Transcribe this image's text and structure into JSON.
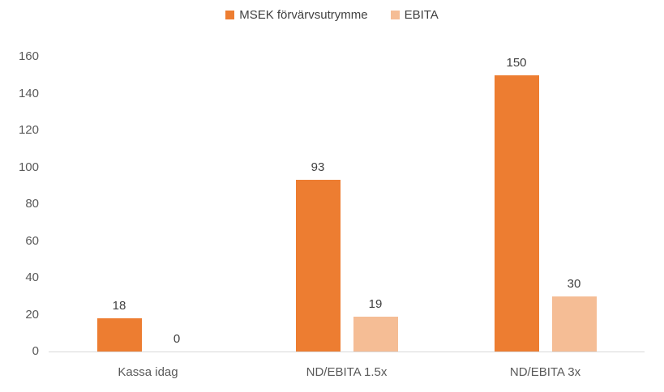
{
  "chart_data": {
    "type": "bar",
    "title": "",
    "categories": [
      "Kassa idag",
      "ND/EBITA 1.5x",
      "ND/EBITA 3x"
    ],
    "series": [
      {
        "name": "MSEK förvärvsutrymme",
        "values": [
          18,
          93,
          150
        ],
        "color": "#ED7D31"
      },
      {
        "name": "EBITA",
        "values": [
          0,
          19,
          30
        ],
        "color": "#F5BD95"
      }
    ],
    "yticks": [
      0,
      20,
      40,
      60,
      80,
      100,
      120,
      140,
      160
    ],
    "ylim": [
      0,
      160
    ],
    "xlabel": "",
    "ylabel": "",
    "grid": false,
    "legend_position": "top",
    "value_labels": true,
    "colors": {
      "axis_line": "#D9D9D9",
      "tick_text": "#595959",
      "value_text": "#404040",
      "legend_text": "#404040"
    }
  }
}
